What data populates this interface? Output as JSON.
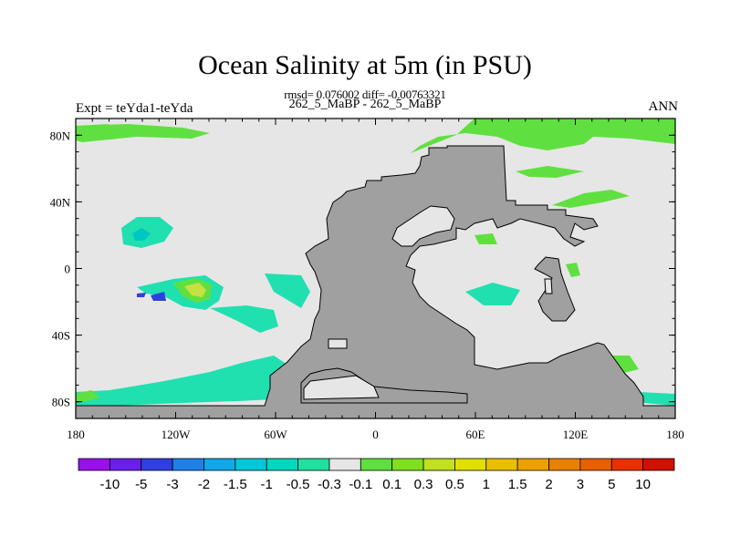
{
  "title": "Ocean Salinity at 5m (in PSU)",
  "subtitle": "rmsd= 0.076002 diff= -0.00763321",
  "center_label": "262_5_MaBP - 262_5_MaBP",
  "left_label": "Expt = teYda1-teYda",
  "right_label": "ANN",
  "map": {
    "lon_range": [
      -180,
      180
    ],
    "lat_range": [
      -90,
      90
    ],
    "lon_ticks": [
      {
        "value": -180,
        "label": "180"
      },
      {
        "value": -120,
        "label": "120W"
      },
      {
        "value": -60,
        "label": "60W"
      },
      {
        "value": 0,
        "label": "0"
      },
      {
        "value": 60,
        "label": "60E"
      },
      {
        "value": 120,
        "label": "120E"
      },
      {
        "value": 180,
        "label": "180"
      }
    ],
    "lat_ticks": [
      {
        "value": 80,
        "label": "80N"
      },
      {
        "value": 40,
        "label": "40N"
      },
      {
        "value": 0,
        "label": "0"
      },
      {
        "value": -40,
        "label": "40S"
      },
      {
        "value": -80,
        "label": "80S"
      }
    ],
    "colors": {
      "background": "#e6e6e6",
      "land": "#a0a0a0",
      "cyan": "#20e0b0",
      "teal": "#00c8c0",
      "green": "#60e040",
      "yellowgreen": "#c8e040",
      "yellow": "#e0e000"
    }
  },
  "colorbar": {
    "labels": [
      "-10",
      "-5",
      "-3",
      "-2",
      "-1.5",
      "-1",
      "-0.5",
      "-0.3",
      "-0.1",
      "0.1",
      "0.3",
      "0.5",
      "1",
      "1.5",
      "2",
      "3",
      "5",
      "10"
    ],
    "colors": [
      "#9a10ea",
      "#6a20ea",
      "#3040e0",
      "#2080e8",
      "#10a8e8",
      "#00c8d8",
      "#00d8c0",
      "#20e0a0",
      "#e6e6e6",
      "#60e040",
      "#80e020",
      "#c0e020",
      "#e0e000",
      "#e8c000",
      "#eca000",
      "#e88000",
      "#e86000",
      "#e83000",
      "#d01000"
    ]
  }
}
